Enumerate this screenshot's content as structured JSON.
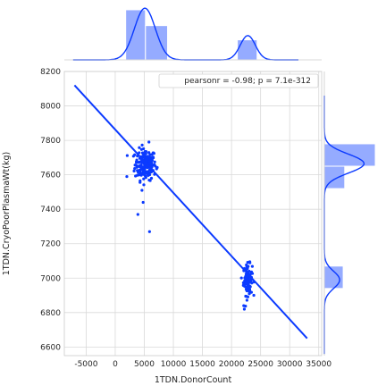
{
  "chart_data": {
    "type": "scatter",
    "title": "",
    "xlabel": "1TDN.DonorCount",
    "ylabel": "1TDN.CryoPoorPlasmaWt(kg)",
    "xlim": [
      -8750,
      35500
    ],
    "ylim": [
      6550,
      8200
    ],
    "xticks": [
      -5000,
      0,
      5000,
      10000,
      15000,
      20000,
      25000,
      30000,
      35000
    ],
    "yticks": [
      6600,
      6800,
      7000,
      7200,
      7400,
      7600,
      7800,
      8000,
      8200
    ],
    "grid": true,
    "annotation": "pearsonr = -0.98; p = 7.1e-312",
    "annotation_position": "top-right",
    "colors": {
      "points": "#0b3aff",
      "line": "#0b3aff",
      "hist": "#7b96ff",
      "kde": "#0b3aff",
      "grid": "#d9d9d9"
    },
    "regression_line": {
      "x": [
        -7000,
        33000
      ],
      "y": [
        8120,
        6650
      ]
    },
    "clusters": [
      {
        "name": "",
        "x_center": 5200,
        "x_spread": 900,
        "y_center": 7660,
        "y_spread": 45,
        "count": 190
      },
      {
        "name": "",
        "x_center": 22800,
        "x_spread": 380,
        "y_center": 6990,
        "y_spread": 45,
        "count": 110
      }
    ],
    "outliers": [
      {
        "x": 4800,
        "y": 7440
      },
      {
        "x": 3900,
        "y": 7370
      },
      {
        "x": 5900,
        "y": 7270
      },
      {
        "x": 4600,
        "y": 7510
      },
      {
        "x": 22100,
        "y": 6840
      },
      {
        "x": 22200,
        "y": 6820
      },
      {
        "x": 5800,
        "y": 7790
      },
      {
        "x": 2000,
        "y": 7590
      }
    ],
    "x_marginal": {
      "bins": [
        [
          1800,
          5200,
          0.95
        ],
        [
          5200,
          9000,
          0.65
        ],
        [
          21000,
          24400,
          0.38
        ]
      ],
      "kde_peaks": [
        {
          "center": 5100,
          "width": 1800,
          "height": 1.0
        },
        {
          "center": 22800,
          "width": 1300,
          "height": 0.47
        }
      ]
    },
    "y_marginal": {
      "bins": [
        [
          7650,
          7780,
          1.0
        ],
        [
          7520,
          7650,
          0.4
        ],
        [
          6940,
          7070,
          0.37
        ]
      ],
      "kde_peaks": [
        {
          "center": 7665,
          "width": 55,
          "height": 0.78
        },
        {
          "center": 6990,
          "width": 50,
          "height": 0.3
        }
      ]
    }
  }
}
